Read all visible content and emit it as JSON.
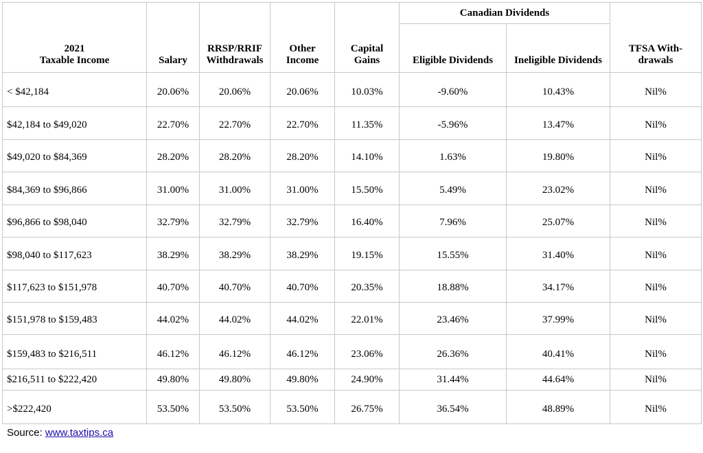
{
  "header": {
    "group": "Canadian Dividends",
    "columns": [
      {
        "lines": [
          "2021",
          "Taxable Income"
        ]
      },
      {
        "lines": [
          "Salary"
        ]
      },
      {
        "lines": [
          "RRSP/RRIF",
          "Withdrawals"
        ]
      },
      {
        "lines": [
          "Other",
          "Income"
        ]
      },
      {
        "lines": [
          "Capital",
          "Gains"
        ]
      },
      {
        "lines": [
          "Eligible Dividends"
        ]
      },
      {
        "lines": [
          "Ineligible Dividends"
        ]
      },
      {
        "lines": [
          "TFSA With-",
          "drawals"
        ]
      }
    ]
  },
  "table": {
    "rows": [
      [
        "< $42,184",
        "20.06%",
        "20.06%",
        "20.06%",
        "10.03%",
        "-9.60%",
        "10.43%",
        "Nil%"
      ],
      [
        "$42,184 to $49,020",
        "22.70%",
        "22.70%",
        "22.70%",
        "11.35%",
        "-5.96%",
        "13.47%",
        "Nil%"
      ],
      [
        "$49,020 to $84,369",
        "28.20%",
        "28.20%",
        "28.20%",
        "14.10%",
        "1.63%",
        "19.80%",
        "Nil%"
      ],
      [
        "$84,369 to $96,866",
        "31.00%",
        "31.00%",
        "31.00%",
        "15.50%",
        "5.49%",
        "23.02%",
        "Nil%"
      ],
      [
        "$96,866 to $98,040",
        "32.79%",
        "32.79%",
        "32.79%",
        "16.40%",
        "7.96%",
        "25.07%",
        "Nil%"
      ],
      [
        "$98,040 to $117,623",
        "38.29%",
        "38.29%",
        "38.29%",
        "19.15%",
        "15.55%",
        "31.40%",
        "Nil%"
      ],
      [
        "$117,623 to $151,978",
        "40.70%",
        "40.70%",
        "40.70%",
        "20.35%",
        "18.88%",
        "34.17%",
        "Nil%"
      ],
      [
        "$151,978 to $159,483",
        "44.02%",
        "44.02%",
        "44.02%",
        "22.01%",
        "23.46%",
        "37.99%",
        "Nil%"
      ],
      [
        "$159,483 to $216,511",
        "46.12%",
        "46.12%",
        "46.12%",
        "23.06%",
        "26.36%",
        "40.41%",
        "Nil%"
      ],
      [
        "$216,511 to $222,420",
        "49.80%",
        "49.80%",
        "49.80%",
        "24.90%",
        "31.44%",
        "44.64%",
        "Nil%"
      ],
      [
        ">$222,420",
        "53.50%",
        "53.50%",
        "53.50%",
        "26.75%",
        "36.54%",
        "48.89%",
        "Nil%"
      ]
    ]
  },
  "source": {
    "label": "Source:",
    "link": "www.taxtips.ca"
  }
}
